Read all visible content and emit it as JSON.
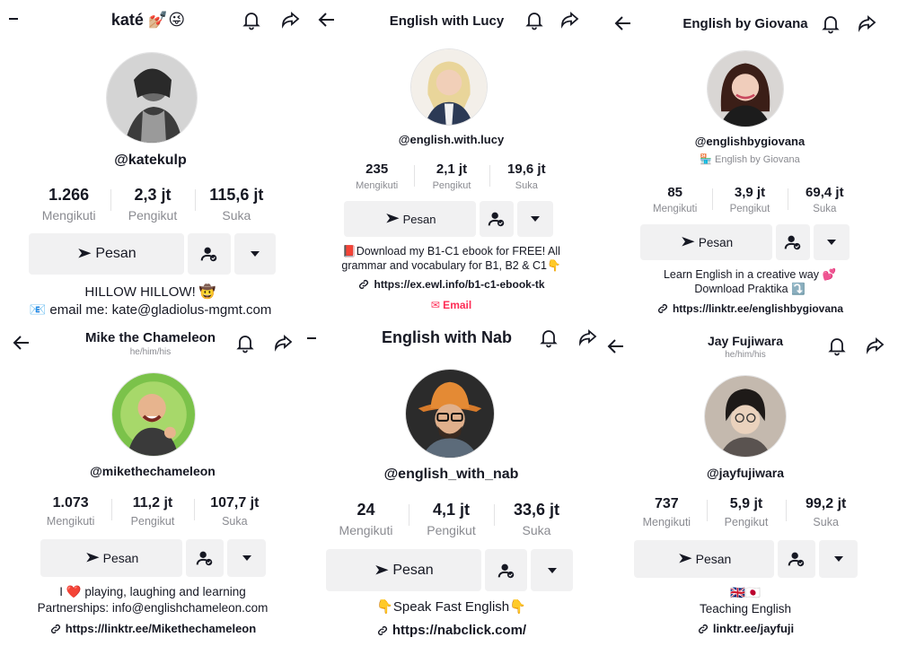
{
  "profiles": [
    {
      "title": "katé 💅🏼😜",
      "handle": "@katekulp",
      "subhandle": "",
      "pronouns": "",
      "stats": [
        {
          "num": "1.266",
          "label": "Mengikuti"
        },
        {
          "num": "2,3 jt",
          "label": "Pengikut"
        },
        {
          "num": "115,6 jt",
          "label": "Suka"
        }
      ],
      "message_label": "Pesan",
      "bio": [
        "HILLOW HILLOW! 🤠",
        "📧 email me: kate@gladiolus-mgmt.com"
      ],
      "link": "",
      "email": ""
    },
    {
      "title": "English with Lucy",
      "handle": "@english.with.lucy",
      "subhandle": "",
      "pronouns": "",
      "stats": [
        {
          "num": "235",
          "label": "Mengikuti"
        },
        {
          "num": "2,1 jt",
          "label": "Pengikut"
        },
        {
          "num": "19,6 jt",
          "label": "Suka"
        }
      ],
      "message_label": "Pesan",
      "bio": [
        "📕Download my B1-C1 ebook for FREE! All",
        "grammar and vocabulary for B1, B2 & C1👇"
      ],
      "link": "https://ex.ewl.info/b1-c1-ebook-tk",
      "email": "✉ Email"
    },
    {
      "title": "English by Giovana",
      "handle": "@englishbygiovana",
      "subhandle": "🏪 English by Giovana",
      "pronouns": "",
      "stats": [
        {
          "num": "85",
          "label": "Mengikuti"
        },
        {
          "num": "3,9 jt",
          "label": "Pengikut"
        },
        {
          "num": "69,4 jt",
          "label": "Suka"
        }
      ],
      "message_label": "Pesan",
      "bio": [
        "Learn English in a creative way 💕",
        "Download Praktika ⤵️"
      ],
      "link": "https://linktr.ee/englishbygiovana",
      "email": ""
    },
    {
      "title": "Mike the Chameleon",
      "handle": "@mikethechameleon",
      "subhandle": "",
      "pronouns": "he/him/his",
      "stats": [
        {
          "num": "1.073",
          "label": "Mengikuti"
        },
        {
          "num": "11,2 jt",
          "label": "Pengikut"
        },
        {
          "num": "107,7 jt",
          "label": "Suka"
        }
      ],
      "message_label": "Pesan",
      "bio": [
        "I ❤️ playing, laughing and learning",
        "Partnerships: info@englishchameleon.com"
      ],
      "link": "https://linktr.ee/Mikethechameleon",
      "email": ""
    },
    {
      "title": "English with Nab",
      "handle": "@english_with_nab",
      "subhandle": "",
      "pronouns": "",
      "stats": [
        {
          "num": "24",
          "label": "Mengikuti"
        },
        {
          "num": "4,1 jt",
          "label": "Pengikut"
        },
        {
          "num": "33,6 jt",
          "label": "Suka"
        }
      ],
      "message_label": "Pesan",
      "bio": [
        "👇Speak Fast English👇"
      ],
      "link": "https://nabclick.com/",
      "email": ""
    },
    {
      "title": "Jay Fujiwara",
      "handle": "@jayfujiwara",
      "subhandle": "",
      "pronouns": "he/him/his",
      "stats": [
        {
          "num": "737",
          "label": "Mengikuti"
        },
        {
          "num": "5,9 jt",
          "label": "Pengikut"
        },
        {
          "num": "99,2 jt",
          "label": "Suka"
        }
      ],
      "message_label": "Pesan",
      "bio": [
        "🇬🇧🇯🇵",
        "Teaching English"
      ],
      "link": "linktr.ee/jayfuji",
      "email": ""
    }
  ]
}
